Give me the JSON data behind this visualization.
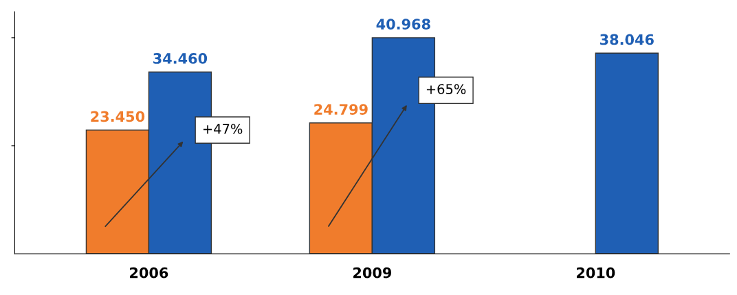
{
  "chart_data": {
    "type": "bar",
    "categories": [
      "2006",
      "2009",
      "2010"
    ],
    "series": [
      {
        "color": "#f07c2c",
        "values": [
          23450,
          24799,
          null
        ],
        "value_labels": [
          "23.450",
          "24.799",
          null
        ]
      },
      {
        "color": "#1f5fb4",
        "values": [
          34460,
          40968,
          38046
        ],
        "value_labels": [
          "34.460",
          "40.968",
          "38.046"
        ]
      }
    ],
    "annotations": [
      "+47%",
      "+65%"
    ],
    "tick_labels": "x",
    "grid": false,
    "legend": false
  }
}
